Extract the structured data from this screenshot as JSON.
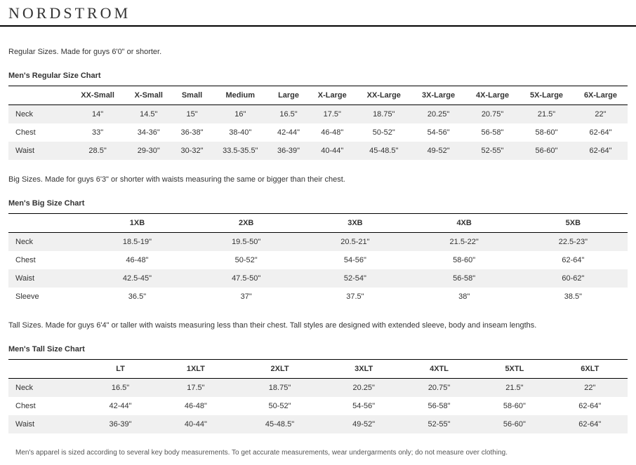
{
  "logo": "NORDSTROM",
  "regular": {
    "intro": "Regular Sizes. Made for guys 6'0\" or shorter.",
    "title": "Men's Regular Size Chart",
    "columns": [
      "",
      "XX-Small",
      "X-Small",
      "Small",
      "Medium",
      "Large",
      "X-Large",
      "XX-Large",
      "3X-Large",
      "4X-Large",
      "5X-Large",
      "6X-Large"
    ],
    "rows": [
      [
        "Neck",
        "14\"",
        "14.5\"",
        "15\"",
        "16\"",
        "16.5\"",
        "17.5\"",
        "18.75\"",
        "20.25\"",
        "20.75\"",
        "21.5\"",
        "22\""
      ],
      [
        "Chest",
        "33\"",
        "34-36\"",
        "36-38\"",
        "38-40\"",
        "42-44\"",
        "46-48\"",
        "50-52\"",
        "54-56\"",
        "56-58\"",
        "58-60\"",
        "62-64\""
      ],
      [
        "Waist",
        "28.5\"",
        "29-30\"",
        "30-32\"",
        "33.5-35.5\"",
        "36-39\"",
        "40-44\"",
        "45-48.5\"",
        "49-52\"",
        "52-55\"",
        "56-60\"",
        "62-64\""
      ]
    ]
  },
  "big": {
    "intro": "Big Sizes. Made for guys 6'3\" or shorter with waists measuring the same or bigger than their chest.",
    "title": "Men's Big Size Chart",
    "columns": [
      "",
      "1XB",
      "2XB",
      "3XB",
      "4XB",
      "5XB"
    ],
    "rows": [
      [
        "Neck",
        "18.5-19\"",
        "19.5-50\"",
        "20.5-21\"",
        "21.5-22\"",
        "22.5-23\""
      ],
      [
        "Chest",
        "46-48\"",
        "50-52\"",
        "54-56\"",
        "58-60\"",
        "62-64\""
      ],
      [
        "Waist",
        "42.5-45\"",
        "47.5-50\"",
        "52-54\"",
        "56-58\"",
        "60-62\""
      ],
      [
        "Sleeve",
        "36.5\"",
        "37\"",
        "37.5\"",
        "38\"",
        "38.5\""
      ]
    ]
  },
  "tall": {
    "intro": "Tall Sizes. Made for guys 6'4\" or taller with waists measuring less than their chest. Tall styles are designed with extended sleeve, body and inseam lengths.",
    "title": "Men's Tall Size Chart",
    "columns": [
      "",
      "LT",
      "1XLT",
      "2XLT",
      "3XLT",
      "4XTL",
      "5XTL",
      "6XLT"
    ],
    "rows": [
      [
        "Neck",
        "16.5\"",
        "17.5\"",
        "18.75\"",
        "20.25\"",
        "20.75\"",
        "21.5\"",
        "22\""
      ],
      [
        "Chest",
        "42-44\"",
        "46-48\"",
        "50-52\"",
        "54-56\"",
        "56-58\"",
        "58-60\"",
        "62-64\""
      ],
      [
        "Waist",
        "36-39\"",
        "40-44\"",
        "45-48.5\"",
        "49-52\"",
        "52-55\"",
        "56-60\"",
        "62-64\""
      ]
    ]
  },
  "footnote": "Men's apparel is sized according to several key body measurements. To get accurate measurements, wear undergarments only; do not measure over clothing.",
  "style": {
    "stripe_color": "#f0f0f0",
    "border_color": "#000000",
    "text_color": "#333333",
    "font_size_body": 11,
    "font_size_logo": 22,
    "label_col_width_pct": 10
  }
}
